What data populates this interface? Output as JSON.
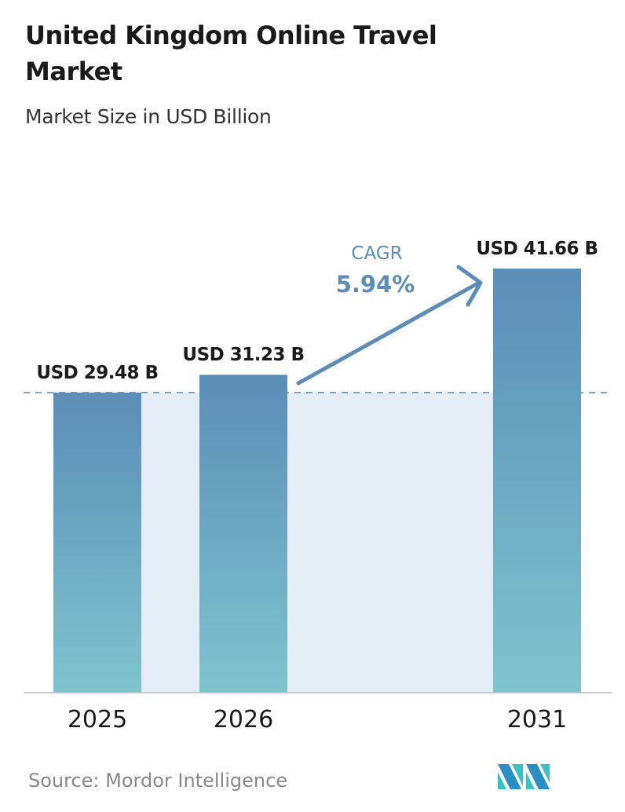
{
  "chart_data": {
    "type": "bar",
    "title": "United Kingdom Online Travel Market",
    "subtitle": "Market Size in USD Billion",
    "categories": [
      "2025",
      "2026",
      "2031"
    ],
    "values": [
      29.48,
      31.23,
      41.66
    ],
    "data_labels": [
      "USD 29.48 B",
      "USD 31.23 B",
      "USD 41.66 B"
    ],
    "unit": "USD Billion",
    "ylim": [
      0,
      41.66
    ],
    "grid": false,
    "annotation": {
      "label": "CAGR",
      "value": "5.94%"
    },
    "colors": {
      "bar_top": "#5b8db8",
      "bar_bottom": "#7fc4cc",
      "annotation": "#5b8db8",
      "band": "#e4edf5"
    }
  },
  "source": "Source:  Mordor Intelligence"
}
